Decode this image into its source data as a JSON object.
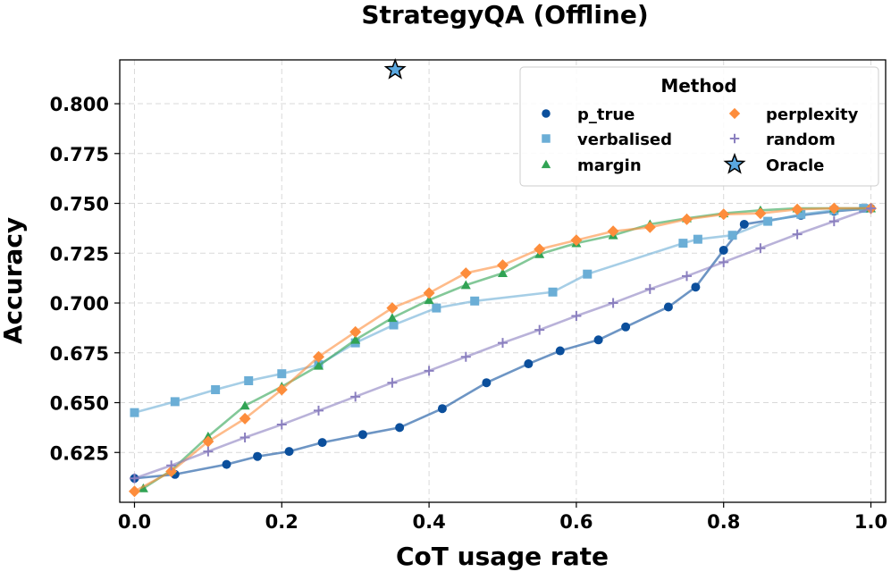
{
  "chart_data": {
    "type": "line",
    "title": "StrategyQA (Offline)",
    "xlabel": "CoT usage rate",
    "ylabel": "Accuracy",
    "xlim": [
      -0.02,
      1.02
    ],
    "ylim": [
      0.6,
      0.822
    ],
    "xticks": [
      0.0,
      0.2,
      0.4,
      0.6,
      0.8,
      1.0
    ],
    "xtick_labels": [
      "0.0",
      "0.2",
      "0.4",
      "0.6",
      "0.8",
      "1.0"
    ],
    "yticks": [
      0.625,
      0.65,
      0.675,
      0.7,
      0.725,
      0.75,
      0.775,
      0.8
    ],
    "ytick_labels": [
      "0.625",
      "0.650",
      "0.675",
      "0.700",
      "0.725",
      "0.750",
      "0.775",
      "0.800"
    ],
    "grid": true,
    "legend": {
      "title": "Method",
      "location": "top-right",
      "columns": 2
    },
    "series": [
      {
        "name": "p_true",
        "marker": "circle",
        "color": "#0b4f9c",
        "x": [
          0.0,
          0.055,
          0.125,
          0.167,
          0.21,
          0.255,
          0.31,
          0.36,
          0.418,
          0.478,
          0.535,
          0.578,
          0.63,
          0.667,
          0.725,
          0.762,
          0.8,
          0.828,
          0.905,
          0.95,
          1.0
        ],
        "y": [
          0.612,
          0.614,
          0.619,
          0.623,
          0.6255,
          0.63,
          0.634,
          0.6375,
          0.647,
          0.66,
          0.6695,
          0.676,
          0.6815,
          0.688,
          0.698,
          0.708,
          0.7265,
          0.7395,
          0.744,
          0.746,
          0.7475
        ]
      },
      {
        "name": "verbalised",
        "marker": "square",
        "color": "#6baed6",
        "x": [
          0.0,
          0.055,
          0.11,
          0.155,
          0.2,
          0.25,
          0.3,
          0.352,
          0.41,
          0.462,
          0.568,
          0.615,
          0.745,
          0.765,
          0.812,
          0.86,
          0.905,
          0.95,
          0.99
        ],
        "y": [
          0.645,
          0.6505,
          0.6565,
          0.661,
          0.6645,
          0.669,
          0.68,
          0.689,
          0.6975,
          0.701,
          0.7055,
          0.7145,
          0.73,
          0.732,
          0.734,
          0.741,
          0.7445,
          0.7465,
          0.7475
        ]
      },
      {
        "name": "margin",
        "marker": "triangle",
        "color": "#31a354",
        "x": [
          0.012,
          0.05,
          0.1,
          0.15,
          0.2,
          0.25,
          0.3,
          0.35,
          0.4,
          0.45,
          0.5,
          0.55,
          0.6,
          0.65,
          0.7,
          0.75,
          0.8,
          0.85,
          0.9,
          0.95,
          1.0
        ],
        "y": [
          0.607,
          0.616,
          0.633,
          0.6485,
          0.658,
          0.6685,
          0.6815,
          0.6925,
          0.7015,
          0.709,
          0.715,
          0.7245,
          0.73,
          0.734,
          0.7395,
          0.7425,
          0.745,
          0.7465,
          0.7475,
          0.7475,
          0.7475
        ]
      },
      {
        "name": "perplexity",
        "marker": "diamond",
        "color": "#fd8d3c",
        "x": [
          0.0,
          0.05,
          0.1,
          0.15,
          0.2,
          0.25,
          0.3,
          0.35,
          0.4,
          0.45,
          0.5,
          0.55,
          0.6,
          0.65,
          0.7,
          0.75,
          0.8,
          0.85,
          0.9,
          0.95,
          1.0
        ],
        "y": [
          0.6055,
          0.6155,
          0.6305,
          0.642,
          0.6565,
          0.673,
          0.6855,
          0.6975,
          0.705,
          0.715,
          0.719,
          0.727,
          0.7315,
          0.736,
          0.738,
          0.742,
          0.7445,
          0.745,
          0.747,
          0.7475,
          0.7475
        ]
      },
      {
        "name": "random",
        "marker": "plus",
        "color": "#8a7fbf",
        "x": [
          0.0,
          0.05,
          0.1,
          0.15,
          0.2,
          0.25,
          0.3,
          0.35,
          0.4,
          0.45,
          0.5,
          0.55,
          0.6,
          0.65,
          0.7,
          0.75,
          0.8,
          0.85,
          0.9,
          0.95,
          1.0
        ],
        "y": [
          0.612,
          0.6185,
          0.6255,
          0.6325,
          0.639,
          0.646,
          0.653,
          0.66,
          0.666,
          0.673,
          0.68,
          0.6865,
          0.6935,
          0.7,
          0.707,
          0.7135,
          0.7205,
          0.7275,
          0.7345,
          0.741,
          0.7475
        ]
      }
    ],
    "oracle": {
      "name": "Oracle",
      "marker": "star",
      "color": "#5aa8e0",
      "x": 0.354,
      "y": 0.817
    }
  }
}
